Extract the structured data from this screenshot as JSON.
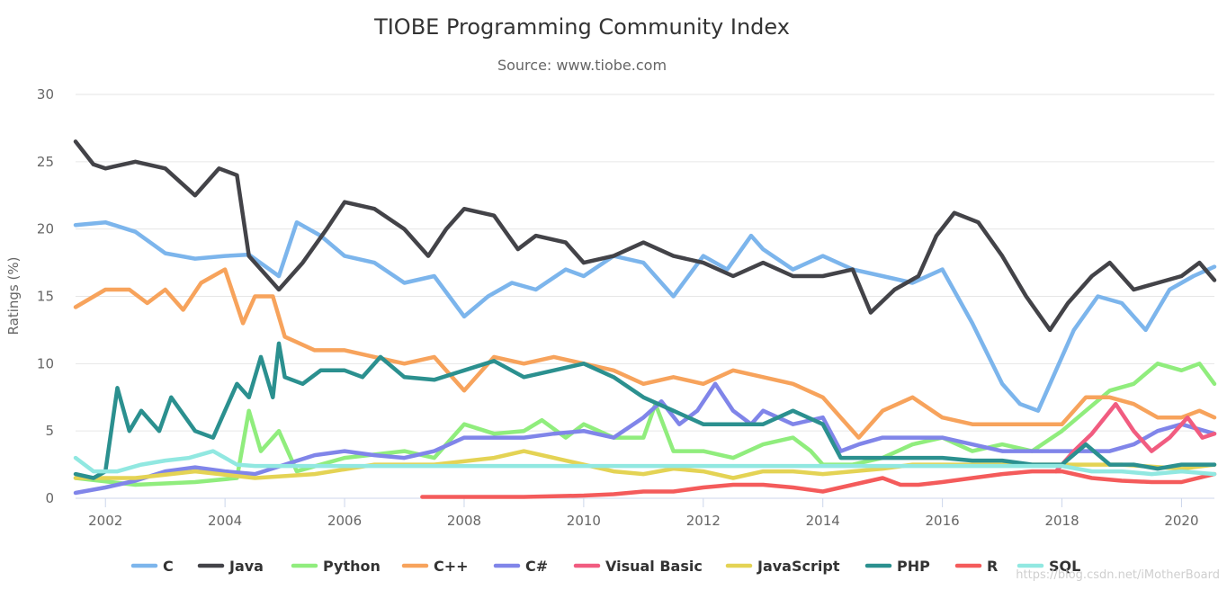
{
  "chart_data": {
    "type": "line",
    "title": "TIOBE Programming Community Index",
    "subtitle": "Source: www.tiobe.com",
    "ylabel": "Ratings (%)",
    "xlabel": "",
    "xlim": [
      2001.5,
      2020.55
    ],
    "ylim": [
      0,
      30
    ],
    "x_ticks": [
      2002,
      2004,
      2006,
      2008,
      2010,
      2012,
      2014,
      2016,
      2018,
      2020
    ],
    "y_ticks": [
      0,
      5,
      10,
      15,
      20,
      25,
      30
    ],
    "grid": true,
    "legend_position": "bottom",
    "series": [
      {
        "name": "C",
        "color": "#7cb5ec",
        "x": [
          2001.5,
          2002.0,
          2002.5,
          2003.0,
          2003.5,
          2004.0,
          2004.4,
          2004.9,
          2005.2,
          2005.6,
          2006.0,
          2006.5,
          2007.0,
          2007.5,
          2008.0,
          2008.4,
          2008.8,
          2009.2,
          2009.7,
          2010.0,
          2010.5,
          2011.0,
          2011.5,
          2012.0,
          2012.4,
          2012.8,
          2013.0,
          2013.5,
          2014.0,
          2014.5,
          2015.0,
          2015.5,
          2016.0,
          2016.5,
          2017.0,
          2017.3,
          2017.6,
          2017.9,
          2018.2,
          2018.6,
          2019.0,
          2019.4,
          2019.8,
          2020.2,
          2020.55
        ],
        "values": [
          20.3,
          20.5,
          19.8,
          18.2,
          17.8,
          18.0,
          18.1,
          16.5,
          20.5,
          19.5,
          18.0,
          17.5,
          16.0,
          16.5,
          13.5,
          15.0,
          16.0,
          15.5,
          17.0,
          16.5,
          18.0,
          17.5,
          15.0,
          18.0,
          17.0,
          19.5,
          18.5,
          17.0,
          18.0,
          17.0,
          16.5,
          16.0,
          17.0,
          13.0,
          8.5,
          7.0,
          6.5,
          9.5,
          12.5,
          15.0,
          14.5,
          12.5,
          15.5,
          16.5,
          17.2
        ]
      },
      {
        "name": "Java",
        "color": "#434348",
        "x": [
          2001.5,
          2001.8,
          2002.0,
          2002.5,
          2003.0,
          2003.5,
          2003.9,
          2004.2,
          2004.4,
          2004.7,
          2004.9,
          2005.3,
          2005.7,
          2006.0,
          2006.5,
          2007.0,
          2007.4,
          2007.7,
          2008.0,
          2008.5,
          2008.9,
          2009.2,
          2009.7,
          2010.0,
          2010.5,
          2011.0,
          2011.5,
          2012.0,
          2012.5,
          2013.0,
          2013.5,
          2014.0,
          2014.5,
          2014.8,
          2015.2,
          2015.6,
          2015.9,
          2016.2,
          2016.6,
          2017.0,
          2017.4,
          2017.8,
          2018.1,
          2018.5,
          2018.8,
          2019.2,
          2019.6,
          2020.0,
          2020.3,
          2020.55
        ],
        "values": [
          26.5,
          24.8,
          24.5,
          25.0,
          24.5,
          22.5,
          24.5,
          24.0,
          18.0,
          16.5,
          15.5,
          17.5,
          20.0,
          22.0,
          21.5,
          20.0,
          18.0,
          20.0,
          21.5,
          21.0,
          18.5,
          19.5,
          19.0,
          17.5,
          18.0,
          19.0,
          18.0,
          17.5,
          16.5,
          17.5,
          16.5,
          16.5,
          17.0,
          13.8,
          15.5,
          16.5,
          19.5,
          21.2,
          20.5,
          18.0,
          15.0,
          12.5,
          14.5,
          16.5,
          17.5,
          15.5,
          16.0,
          16.5,
          17.5,
          16.2
        ]
      },
      {
        "name": "Python",
        "color": "#90ed7d",
        "x": [
          2001.5,
          2002.5,
          2003.5,
          2004.2,
          2004.4,
          2004.6,
          2004.9,
          2005.2,
          2006.0,
          2007.0,
          2007.5,
          2008.0,
          2008.5,
          2009.0,
          2009.3,
          2009.7,
          2010.0,
          2010.5,
          2011.0,
          2011.2,
          2011.5,
          2012.0,
          2012.5,
          2013.0,
          2013.5,
          2013.8,
          2014.0,
          2014.5,
          2015.0,
          2015.5,
          2016.0,
          2016.5,
          2017.0,
          2017.5,
          2018.0,
          2018.4,
          2018.8,
          2019.2,
          2019.6,
          2020.0,
          2020.3,
          2020.55
        ],
        "values": [
          1.5,
          1.0,
          1.2,
          1.5,
          6.5,
          3.5,
          5.0,
          2.0,
          3.0,
          3.5,
          3.0,
          5.5,
          4.8,
          5.0,
          5.8,
          4.5,
          5.5,
          4.5,
          4.5,
          7.0,
          3.5,
          3.5,
          3.0,
          4.0,
          4.5,
          3.5,
          2.5,
          2.5,
          3.0,
          4.0,
          4.5,
          3.5,
          4.0,
          3.5,
          5.0,
          6.5,
          8.0,
          8.5,
          10.0,
          9.5,
          10.0,
          8.5
        ]
      },
      {
        "name": "C++",
        "color": "#f7a35c",
        "x": [
          2001.5,
          2002.0,
          2002.4,
          2002.7,
          2003.0,
          2003.3,
          2003.6,
          2004.0,
          2004.3,
          2004.5,
          2004.8,
          2005.0,
          2005.5,
          2006.0,
          2006.5,
          2007.0,
          2007.5,
          2008.0,
          2008.5,
          2009.0,
          2009.5,
          2010.0,
          2010.5,
          2011.0,
          2011.5,
          2012.0,
          2012.5,
          2013.0,
          2013.5,
          2014.0,
          2014.3,
          2014.6,
          2015.0,
          2015.5,
          2016.0,
          2016.5,
          2017.0,
          2017.5,
          2018.0,
          2018.4,
          2018.8,
          2019.2,
          2019.6,
          2020.0,
          2020.3,
          2020.55
        ],
        "values": [
          14.2,
          15.5,
          15.5,
          14.5,
          15.5,
          14.0,
          16.0,
          17.0,
          13.0,
          15.0,
          15.0,
          12.0,
          11.0,
          11.0,
          10.5,
          10.0,
          10.5,
          8.0,
          10.5,
          10.0,
          10.5,
          10.0,
          9.5,
          8.5,
          9.0,
          8.5,
          9.5,
          9.0,
          8.5,
          7.5,
          6.0,
          4.5,
          6.5,
          7.5,
          6.0,
          5.5,
          5.5,
          5.5,
          5.5,
          7.5,
          7.5,
          7.0,
          6.0,
          6.0,
          6.5,
          6.0
        ]
      },
      {
        "name": "C#",
        "color": "#8085e9",
        "x": [
          2001.5,
          2002.0,
          2002.5,
          2003.0,
          2003.5,
          2004.0,
          2004.5,
          2005.0,
          2005.5,
          2006.0,
          2006.5,
          2007.0,
          2007.5,
          2008.0,
          2008.5,
          2009.0,
          2009.5,
          2010.0,
          2010.5,
          2011.0,
          2011.3,
          2011.6,
          2011.9,
          2012.2,
          2012.5,
          2012.8,
          2013.0,
          2013.5,
          2014.0,
          2014.3,
          2014.6,
          2015.0,
          2015.5,
          2016.0,
          2016.5,
          2017.0,
          2017.5,
          2018.0,
          2018.4,
          2018.8,
          2019.2,
          2019.6,
          2020.0,
          2020.55
        ],
        "values": [
          0.4,
          0.8,
          1.3,
          2.0,
          2.3,
          2.0,
          1.8,
          2.5,
          3.2,
          3.5,
          3.2,
          3.0,
          3.5,
          4.5,
          4.5,
          4.5,
          4.8,
          5.0,
          4.5,
          6.0,
          7.2,
          5.5,
          6.5,
          8.5,
          6.5,
          5.5,
          6.5,
          5.5,
          6.0,
          3.5,
          4.0,
          4.5,
          4.5,
          4.5,
          4.0,
          3.5,
          3.5,
          3.5,
          3.5,
          3.5,
          4.0,
          5.0,
          5.5,
          4.8
        ]
      },
      {
        "name": "Visual Basic",
        "color": "#f15c80",
        "x": [
          2017.9,
          2018.2,
          2018.5,
          2018.9,
          2019.2,
          2019.5,
          2019.8,
          2020.1,
          2020.35,
          2020.55
        ],
        "values": [
          2.0,
          3.5,
          4.8,
          7.0,
          5.0,
          3.5,
          4.5,
          6.0,
          4.5,
          4.8
        ]
      },
      {
        "name": "JavaScript",
        "color": "#e4d354",
        "x": [
          2001.5,
          2002.5,
          2003.5,
          2004.5,
          2005.5,
          2006.5,
          2007.5,
          2008.5,
          2009.0,
          2009.5,
          2010.0,
          2010.5,
          2011.0,
          2011.5,
          2012.0,
          2012.5,
          2013.0,
          2013.5,
          2014.0,
          2014.5,
          2015.0,
          2015.5,
          2016.0,
          2017.0,
          2018.0,
          2019.0,
          2020.0,
          2020.55
        ],
        "values": [
          1.5,
          1.5,
          2.0,
          1.5,
          1.8,
          2.5,
          2.5,
          3.0,
          3.5,
          3.0,
          2.5,
          2.0,
          1.8,
          2.2,
          2.0,
          1.5,
          2.0,
          2.0,
          1.8,
          2.0,
          2.2,
          2.5,
          2.5,
          2.5,
          2.5,
          2.5,
          2.2,
          2.5
        ]
      },
      {
        "name": "PHP",
        "color": "#2b908f",
        "x": [
          2001.5,
          2001.8,
          2002.0,
          2002.2,
          2002.4,
          2002.6,
          2002.9,
          2003.1,
          2003.5,
          2003.8,
          2004.0,
          2004.2,
          2004.4,
          2004.6,
          2004.8,
          2004.9,
          2005.0,
          2005.3,
          2005.6,
          2006.0,
          2006.3,
          2006.6,
          2007.0,
          2007.5,
          2008.0,
          2008.5,
          2009.0,
          2009.5,
          2010.0,
          2010.5,
          2011.0,
          2011.5,
          2012.0,
          2012.5,
          2013.0,
          2013.5,
          2014.0,
          2014.3,
          2014.6,
          2015.0,
          2015.5,
          2016.0,
          2016.5,
          2017.0,
          2017.5,
          2018.0,
          2018.4,
          2018.8,
          2019.2,
          2019.6,
          2020.0,
          2020.55
        ],
        "values": [
          1.8,
          1.5,
          2.0,
          8.2,
          5.0,
          6.5,
          5.0,
          7.5,
          5.0,
          4.5,
          6.5,
          8.5,
          7.5,
          10.5,
          7.5,
          11.5,
          9.0,
          8.5,
          9.5,
          9.5,
          9.0,
          10.5,
          9.0,
          8.8,
          9.5,
          10.2,
          9.0,
          9.5,
          10.0,
          9.0,
          7.5,
          6.5,
          5.5,
          5.5,
          5.5,
          6.5,
          5.5,
          3.0,
          3.0,
          3.0,
          3.0,
          3.0,
          2.8,
          2.8,
          2.5,
          2.5,
          4.0,
          2.5,
          2.5,
          2.2,
          2.5,
          2.5
        ]
      },
      {
        "name": "R",
        "color": "#f45b5b",
        "x": [
          2007.3,
          2008.0,
          2009.0,
          2010.0,
          2010.5,
          2011.0,
          2011.5,
          2012.0,
          2012.5,
          2013.0,
          2013.5,
          2014.0,
          2014.5,
          2015.0,
          2015.3,
          2015.6,
          2016.0,
          2016.5,
          2017.0,
          2017.5,
          2018.0,
          2018.5,
          2019.0,
          2019.5,
          2020.0,
          2020.55
        ],
        "values": [
          0.1,
          0.1,
          0.1,
          0.2,
          0.3,
          0.5,
          0.5,
          0.8,
          1.0,
          1.0,
          0.8,
          0.5,
          1.0,
          1.5,
          1.0,
          1.0,
          1.2,
          1.5,
          1.8,
          2.0,
          2.0,
          1.5,
          1.3,
          1.2,
          1.2,
          1.8
        ]
      },
      {
        "name": "SQL",
        "color": "#91e8e1",
        "x": [
          2001.5,
          2001.8,
          2002.2,
          2002.6,
          2003.0,
          2003.4,
          2003.8,
          2004.2,
          2004.5,
          2018.0,
          2018.5,
          2019.0,
          2019.5,
          2020.0,
          2020.55
        ],
        "values": [
          3.0,
          2.0,
          2.0,
          2.5,
          2.8,
          3.0,
          3.5,
          2.5,
          2.4,
          2.4,
          2.0,
          2.0,
          1.8,
          2.0,
          1.8
        ]
      }
    ]
  },
  "watermark": "https://blog.csdn.net/iMotherBoard"
}
